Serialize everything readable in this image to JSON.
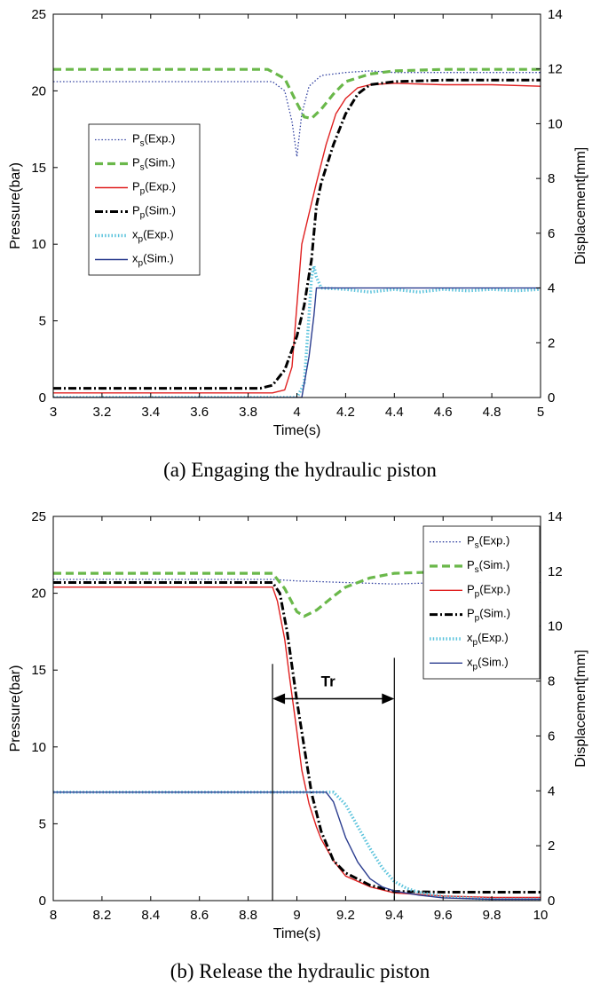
{
  "chart_data": [
    {
      "type": "line",
      "caption": "(a) Engaging the hydraulic piston",
      "xlabel": "Time(s)",
      "ylabel": "Pressure(bar)",
      "y2label": "Displacement[mm]",
      "xlim": [
        3,
        5
      ],
      "ylim": [
        0,
        25
      ],
      "y2lim": [
        0,
        14
      ],
      "xticks": [
        "3",
        "3.2",
        "3.4",
        "3.6",
        "3.8",
        "4",
        "4.2",
        "4.4",
        "4.6",
        "4.8",
        "5"
      ],
      "yticks": [
        "0",
        "5",
        "10",
        "15",
        "20",
        "25"
      ],
      "y2ticks": [
        "0",
        "2",
        "4",
        "6",
        "8",
        "10",
        "12",
        "14"
      ],
      "legend_placement": "middle-left",
      "grid": false,
      "series": [
        {
          "name": "Ps(Exp.)",
          "label_main": "P",
          "label_sub": "s",
          "label_tail": "(Exp.)",
          "axis": "left",
          "color": "#3040a0",
          "style": "dotted",
          "x": [
            3.0,
            3.5,
            3.9,
            3.95,
            3.98,
            4.0,
            4.02,
            4.05,
            4.1,
            4.2,
            4.3,
            4.4,
            4.6,
            4.8,
            5.0
          ],
          "y": [
            20.6,
            20.6,
            20.6,
            20.0,
            18.0,
            15.7,
            18.5,
            20.3,
            21.0,
            21.2,
            21.3,
            21.2,
            21.2,
            21.2,
            21.2
          ]
        },
        {
          "name": "Ps(Sim.)",
          "label_main": "P",
          "label_sub": "s",
          "label_tail": "(Sim.)",
          "axis": "left",
          "color": "#6ab84a",
          "style": "dashed",
          "x": [
            3.0,
            3.5,
            3.88,
            3.95,
            4.0,
            4.03,
            4.06,
            4.1,
            4.15,
            4.2,
            4.3,
            4.4,
            4.6,
            4.8,
            5.0
          ],
          "y": [
            21.4,
            21.4,
            21.4,
            20.8,
            19.2,
            18.3,
            18.2,
            18.8,
            19.8,
            20.6,
            21.1,
            21.3,
            21.4,
            21.4,
            21.4
          ]
        },
        {
          "name": "Pp(Exp.)",
          "label_main": "P",
          "label_sub": "p",
          "label_tail": "(Exp.)",
          "axis": "left",
          "color": "#e02020",
          "style": "solid",
          "x": [
            3.0,
            3.5,
            3.9,
            3.95,
            3.98,
            4.0,
            4.02,
            4.05,
            4.08,
            4.12,
            4.16,
            4.2,
            4.25,
            4.3,
            4.4,
            4.6,
            4.8,
            5.0
          ],
          "y": [
            0.3,
            0.3,
            0.3,
            0.5,
            2.0,
            6.0,
            10.0,
            12.0,
            14.0,
            16.5,
            18.5,
            19.5,
            20.2,
            20.4,
            20.5,
            20.4,
            20.4,
            20.3
          ]
        },
        {
          "name": "Pp(Sim.)",
          "label_main": "P",
          "label_sub": "p",
          "label_tail": "(Sim.)",
          "axis": "left",
          "color": "#000000",
          "style": "dashdot",
          "x": [
            3.0,
            3.5,
            3.85,
            3.9,
            3.95,
            4.0,
            4.03,
            4.06,
            4.08,
            4.1,
            4.15,
            4.2,
            4.25,
            4.3,
            4.4,
            4.6,
            4.8,
            5.0
          ],
          "y": [
            0.6,
            0.6,
            0.6,
            0.8,
            1.8,
            4.0,
            6.0,
            9.0,
            12.5,
            14.0,
            16.5,
            18.5,
            19.8,
            20.4,
            20.6,
            20.7,
            20.7,
            20.7
          ]
        },
        {
          "name": "xp(Exp.)",
          "label_main": "x",
          "label_sub": "p",
          "label_tail": "(Exp.)",
          "axis": "right",
          "color": "#5bc3dc",
          "style": "dotted",
          "x": [
            3.0,
            4.0,
            4.03,
            4.05,
            4.06,
            4.07,
            4.08,
            4.1,
            4.2,
            4.3,
            4.4,
            4.5,
            4.6,
            4.7,
            4.8,
            4.9,
            5.0
          ],
          "y": [
            0,
            0,
            0.5,
            3.0,
            4.4,
            4.8,
            4.4,
            4.0,
            3.95,
            3.85,
            3.95,
            3.85,
            3.95,
            3.9,
            3.95,
            3.9,
            3.95
          ]
        },
        {
          "name": "xp(Sim.)",
          "label_main": "x",
          "label_sub": "p",
          "label_tail": "(Sim.)",
          "axis": "right",
          "color": "#2b3d8f",
          "style": "solid",
          "x": [
            3.0,
            4.02,
            4.05,
            4.07,
            4.08,
            4.2,
            4.4,
            4.6,
            4.8,
            5.0
          ],
          "y": [
            0,
            0,
            1.5,
            3.0,
            4.0,
            4.0,
            4.0,
            4.0,
            4.0,
            4.0
          ]
        }
      ]
    },
    {
      "type": "line",
      "caption": "(b) Release the hydraulic piston",
      "xlabel": "Time(s)",
      "ylabel": "Pressure(bar)",
      "y2label": "Displacement[mm]",
      "xlim": [
        8,
        10
      ],
      "ylim": [
        0,
        25
      ],
      "y2lim": [
        0,
        14
      ],
      "xticks": [
        "8",
        "8.2",
        "8.4",
        "8.6",
        "8.8",
        "9",
        "9.2",
        "9.4",
        "9.6",
        "9.8",
        "10"
      ],
      "yticks": [
        "0",
        "5",
        "10",
        "15",
        "20",
        "25"
      ],
      "y2ticks": [
        "0",
        "2",
        "4",
        "6",
        "8",
        "10",
        "12",
        "14"
      ],
      "legend_placement": "top-right",
      "grid": false,
      "annotation": {
        "text": "Tr",
        "x_start": 8.9,
        "x_end": 9.4,
        "y": 13.6
      },
      "series": [
        {
          "name": "Ps(Exp.)",
          "label_main": "P",
          "label_sub": "s",
          "label_tail": "(Exp.)",
          "axis": "left",
          "color": "#3040a0",
          "style": "dotted",
          "x": [
            8.0,
            8.5,
            8.9,
            9.0,
            9.2,
            9.4,
            9.6,
            9.8,
            10.0
          ],
          "y": [
            20.9,
            20.9,
            20.9,
            20.8,
            20.7,
            20.6,
            20.7,
            20.7,
            20.7
          ]
        },
        {
          "name": "Ps(Sim.)",
          "label_main": "P",
          "label_sub": "s",
          "label_tail": "(Sim.)",
          "axis": "left",
          "color": "#6ab84a",
          "style": "dashed",
          "x": [
            8.0,
            8.5,
            8.9,
            8.95,
            9.0,
            9.03,
            9.08,
            9.15,
            9.2,
            9.3,
            9.4,
            9.6,
            9.8,
            10.0
          ],
          "y": [
            21.3,
            21.3,
            21.3,
            20.3,
            18.8,
            18.5,
            18.9,
            19.8,
            20.4,
            21.0,
            21.3,
            21.4,
            21.4,
            21.4
          ]
        },
        {
          "name": "Pp(Exp.)",
          "label_main": "P",
          "label_sub": "p",
          "label_tail": "(Exp.)",
          "axis": "left",
          "color": "#e02020",
          "style": "solid",
          "x": [
            8.0,
            8.5,
            8.9,
            8.92,
            8.95,
            8.97,
            9.0,
            9.02,
            9.05,
            9.08,
            9.1,
            9.15,
            9.2,
            9.3,
            9.4,
            9.6,
            9.8,
            10.0
          ],
          "y": [
            20.4,
            20.4,
            20.4,
            19.5,
            17.0,
            14.5,
            11.0,
            8.5,
            6.3,
            4.8,
            4.0,
            2.6,
            1.6,
            0.9,
            0.5,
            0.3,
            0.2,
            0.2
          ]
        },
        {
          "name": "Pp(Sim.)",
          "label_main": "P",
          "label_sub": "p",
          "label_tail": "(Sim.)",
          "axis": "left",
          "color": "#000000",
          "style": "dashdot",
          "x": [
            8.0,
            8.5,
            8.9,
            8.93,
            8.96,
            9.0,
            9.03,
            9.06,
            9.1,
            9.15,
            9.2,
            9.3,
            9.4,
            9.6,
            9.8,
            10.0
          ],
          "y": [
            20.7,
            20.7,
            20.7,
            20.0,
            17.5,
            13.0,
            10.0,
            7.0,
            4.5,
            2.6,
            1.8,
            1.0,
            0.6,
            0.55,
            0.55,
            0.55
          ]
        },
        {
          "name": "xp(Exp.)",
          "label_main": "x",
          "label_sub": "p",
          "label_tail": "(Exp.)",
          "axis": "right",
          "color": "#5bc3dc",
          "style": "dotted",
          "x": [
            8.0,
            8.5,
            9.0,
            9.15,
            9.2,
            9.25,
            9.3,
            9.35,
            9.4,
            9.45,
            9.5,
            9.6,
            9.7,
            9.8,
            10.0
          ],
          "y": [
            3.95,
            3.95,
            3.95,
            3.95,
            3.5,
            2.7,
            1.9,
            1.2,
            0.7,
            0.45,
            0.3,
            0.15,
            0.1,
            0.05,
            0.05
          ]
        },
        {
          "name": "xp(Sim.)",
          "label_main": "x",
          "label_sub": "p",
          "label_tail": "(Sim.)",
          "axis": "right",
          "color": "#2b3d8f",
          "style": "solid",
          "x": [
            8.0,
            8.5,
            9.0,
            9.12,
            9.15,
            9.2,
            9.25,
            9.3,
            9.35,
            9.4,
            9.5,
            9.6,
            9.8,
            10.0
          ],
          "y": [
            3.95,
            3.95,
            3.95,
            3.95,
            3.6,
            2.3,
            1.4,
            0.8,
            0.5,
            0.35,
            0.2,
            0.1,
            0.05,
            0.05
          ]
        }
      ]
    }
  ]
}
